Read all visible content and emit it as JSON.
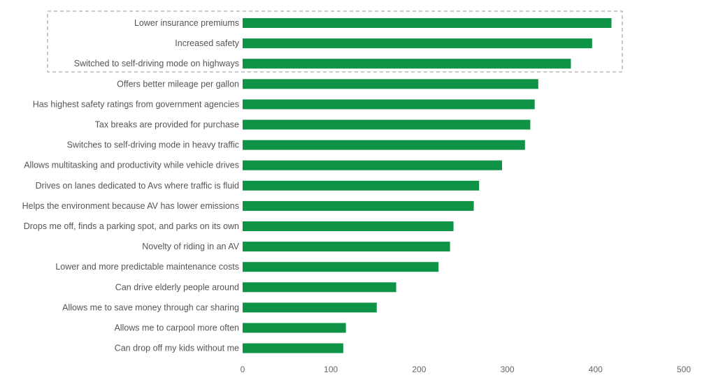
{
  "chart_data": {
    "type": "bar",
    "orientation": "horizontal",
    "title": "",
    "xlabel": "",
    "ylabel": "",
    "xlim": [
      0,
      500
    ],
    "x_ticks": [
      "0",
      "100",
      "200",
      "300",
      "400",
      "500"
    ],
    "x_tick_values": [
      0,
      100,
      200,
      300,
      400,
      500
    ],
    "grid": false,
    "bar_color": "#0e9347",
    "highlight_box_color": "#aaaaaa",
    "highlighted_top_n": 3,
    "categories": [
      "Lower insurance premiums",
      "Increased safety",
      "Switched to self-driving mode on highways",
      "Offers better mileage per gallon",
      "Has highest safety ratings from government agencies",
      "Tax breaks are provided for purchase",
      "Switches to self-driving mode in heavy traffic",
      "Allows multitasking and productivity while vehicle drives",
      "Drives on lanes dedicated to Avs where traffic is fluid",
      "Helps the environment because AV has lower emissions",
      "Drops me off, finds a parking spot, and parks on its own",
      "Novelty of riding in an AV",
      "Lower and more predictable maintenance costs",
      "Can drive elderly people around",
      "Allows me to save money through car sharing",
      "Allows me to carpool more often",
      "Can drop off my kids without me"
    ],
    "values": [
      418,
      396,
      372,
      335,
      331,
      326,
      320,
      294,
      268,
      262,
      239,
      235,
      222,
      174,
      152,
      117,
      114
    ]
  }
}
